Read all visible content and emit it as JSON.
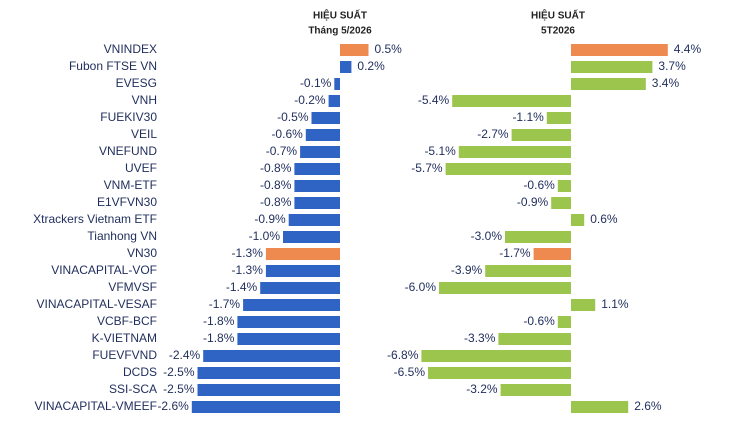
{
  "chart_data": {
    "type": "bar",
    "orientation": "horizontal",
    "categories": [
      "VNINDEX",
      "Fubon FTSE VN",
      "EVESG",
      "VNH",
      "FUEKIV30",
      "VEIL",
      "VNEFUND",
      "UVEF",
      "VNM-ETF",
      "E1VFVN30",
      "Xtrackers Vietnam ETF",
      "Tianhong VN",
      "VN30",
      "VINACAPITAL-VOF",
      "VFMVSF",
      "VINACAPITAL-VESAF",
      "VCBF-BCF",
      "K-VIETNAM",
      "FUEVFVND",
      "DCDS",
      "SSI-SCA",
      "VINACAPITAL-VMEEF"
    ],
    "series": [
      {
        "name": "HIỆU SUẤT",
        "subtitle": "Tháng 5/2026",
        "values": [
          0.5,
          0.2,
          -0.1,
          -0.2,
          -0.5,
          -0.6,
          -0.7,
          -0.8,
          -0.8,
          -0.8,
          -0.9,
          -1.0,
          -1.3,
          -1.3,
          -1.4,
          -1.7,
          -1.8,
          -1.8,
          -2.4,
          -2.5,
          -2.5,
          -2.6
        ],
        "value_labels": [
          "0.5%",
          "0.2%",
          "-0.1%",
          "-0.2%",
          "-0.5%",
          "-0.6%",
          "-0.7%",
          "-0.8%",
          "-0.8%",
          "-0.8%",
          "-0.9%",
          "-1.0%",
          "-1.3%",
          "-1.3%",
          "-1.4%",
          "-1.7%",
          "-1.8%",
          "-1.8%",
          "-2.4%",
          "-2.5%",
          "-2.5%",
          "-2.6%"
        ],
        "colors": [
          "#ee8a50",
          "#2f64c4",
          "#2f64c4",
          "#2f64c4",
          "#2f64c4",
          "#2f64c4",
          "#2f64c4",
          "#2f64c4",
          "#2f64c4",
          "#2f64c4",
          "#2f64c4",
          "#2f64c4",
          "#ee8a50",
          "#2f64c4",
          "#2f64c4",
          "#2f64c4",
          "#2f64c4",
          "#2f64c4",
          "#2f64c4",
          "#2f64c4",
          "#2f64c4",
          "#2f64c4"
        ]
      },
      {
        "name": "HIỆU SUẤT",
        "subtitle": "5T2026",
        "values": [
          4.4,
          3.7,
          3.4,
          -5.4,
          -1.1,
          -2.7,
          -5.1,
          -5.7,
          -0.6,
          -0.9,
          0.6,
          -3.0,
          -1.7,
          -3.9,
          -6.0,
          1.1,
          -0.6,
          -3.3,
          -6.8,
          -6.5,
          -3.2,
          2.6
        ],
        "value_labels": [
          "4.4%",
          "3.7%",
          "3.4%",
          "-5.4%",
          "-1.1%",
          "-2.7%",
          "-5.1%",
          "-5.7%",
          "-0.6%",
          "-0.9%",
          "0.6%",
          "-3.0%",
          "-1.7%",
          "-3.9%",
          "-6.0%",
          "1.1%",
          "-0.6%",
          "-3.3%",
          "-6.8%",
          "-6.5%",
          "-3.2%",
          "2.6%"
        ],
        "colors": [
          "#ee8a50",
          "#9cc54d",
          "#9cc54d",
          "#9cc54d",
          "#9cc54d",
          "#9cc54d",
          "#9cc54d",
          "#9cc54d",
          "#9cc54d",
          "#9cc54d",
          "#9cc54d",
          "#9cc54d",
          "#ee8a50",
          "#9cc54d",
          "#9cc54d",
          "#9cc54d",
          "#9cc54d",
          "#9cc54d",
          "#9cc54d",
          "#9cc54d",
          "#9cc54d",
          "#9cc54d"
        ]
      }
    ]
  }
}
